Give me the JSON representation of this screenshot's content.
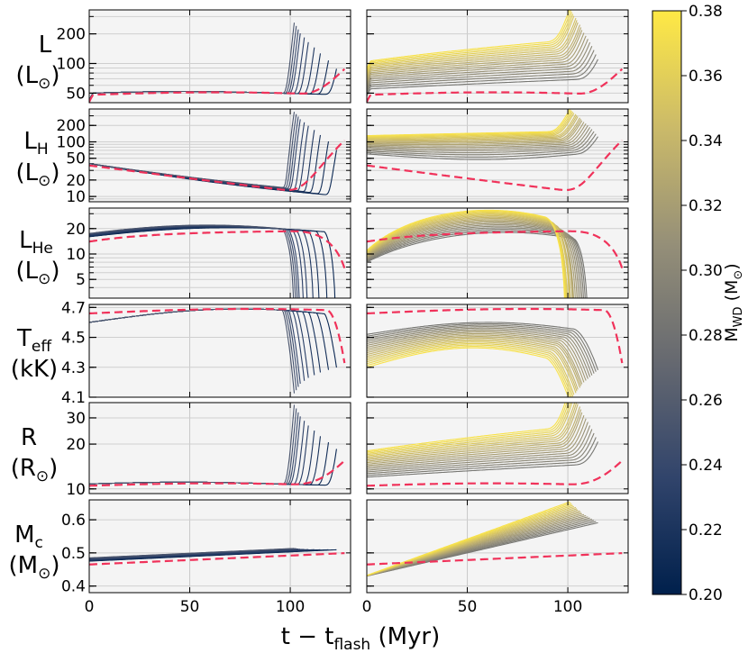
{
  "chart_data": {
    "type": "line",
    "title": "",
    "xlabel": "t − t_flash (Myr)",
    "xlim": [
      0,
      130
    ],
    "xticks": [
      "0",
      "50",
      "100"
    ],
    "columns": [
      "left",
      "right"
    ],
    "rows": [
      {
        "key": "L",
        "label": "L",
        "label_sub": "",
        "unit": "(L⊙)",
        "unit_main": "(L",
        "unit_sub": "⊙",
        "unit_end": ")",
        "scale": "log",
        "ylim": [
          40,
          350
        ],
        "yticks": [
          "50",
          "100",
          "200"
        ]
      },
      {
        "key": "LH",
        "label": "L",
        "label_sub": "H",
        "unit": "(L⊙)",
        "unit_main": "(L",
        "unit_sub": "⊙",
        "unit_end": ")",
        "scale": "log",
        "ylim": [
          8,
          400
        ],
        "yticks": [
          "10",
          "20",
          "50",
          "100",
          "200"
        ]
      },
      {
        "key": "LHe",
        "label": "L",
        "label_sub": "He",
        "unit": "(L⊙)",
        "unit_main": "(L",
        "unit_sub": "⊙",
        "unit_end": ")",
        "scale": "log",
        "ylim": [
          3,
          35
        ],
        "yticks": [
          "5",
          "10",
          "20"
        ]
      },
      {
        "key": "Teff",
        "label": "T",
        "label_sub": "eff",
        "unit": "(kK)",
        "unit_main": "(kK)",
        "unit_sub": "",
        "unit_end": "",
        "scale": "linear",
        "ylim": [
          4.1,
          4.72
        ],
        "yticks": [
          "4.1",
          "4.3",
          "4.5",
          "4.7"
        ]
      },
      {
        "key": "R",
        "label": "R",
        "label_sub": "",
        "unit": "(R⊙)",
        "unit_main": "(R",
        "unit_sub": "⊙",
        "unit_end": ")",
        "scale": "log",
        "ylim": [
          9.3,
          38
        ],
        "yticks": [
          "10",
          "20",
          "30"
        ]
      },
      {
        "key": "Mc",
        "label": "M",
        "label_sub": "c",
        "unit": "(M⊙)",
        "unit_main": "(M",
        "unit_sub": "⊙",
        "unit_end": ")",
        "scale": "linear",
        "ylim": [
          0.38,
          0.66
        ],
        "yticks": [
          "0.4",
          "0.5",
          "0.6"
        ]
      }
    ],
    "colorbar": {
      "label": "M_WD (M⊙)",
      "label_main": "M",
      "label_sub": "WD",
      "label_unit_open": " (M",
      "label_unit_sub": "⊙",
      "label_unit_close": ")",
      "range": [
        0.2,
        0.38
      ],
      "ticks": [
        "0.20",
        "0.22",
        "0.24",
        "0.26",
        "0.28",
        "0.30",
        "0.32",
        "0.34",
        "0.36",
        "0.38"
      ],
      "colormap": "cividis",
      "color_stops": [
        "#00204c",
        "#31446b",
        "#666970",
        "#958f78",
        "#cbba69",
        "#ffe945"
      ]
    },
    "reference": {
      "name": "dashed reference track",
      "color": "#f0325a",
      "style": "dashed"
    },
    "series": {
      "left_masses": [
        0.208,
        0.213,
        0.218,
        0.223,
        0.228,
        0.233,
        0.238,
        0.243,
        0.248,
        0.253
      ],
      "left_end_times": [
        123,
        119,
        115,
        112,
        109,
        107,
        105,
        104,
        103,
        102
      ],
      "right_masses": [
        0.285,
        0.29,
        0.295,
        0.3,
        0.305,
        0.31,
        0.315,
        0.32,
        0.325,
        0.33,
        0.335,
        0.34,
        0.345,
        0.35,
        0.355,
        0.36,
        0.365,
        0.37,
        0.375
      ],
      "right_end_times": [
        115,
        114,
        113,
        112,
        111,
        110,
        109,
        108,
        107,
        106.5,
        106,
        105,
        104.5,
        104,
        103,
        102.5,
        102,
        101.5,
        101
      ],
      "reference_end_time": 127
    }
  }
}
